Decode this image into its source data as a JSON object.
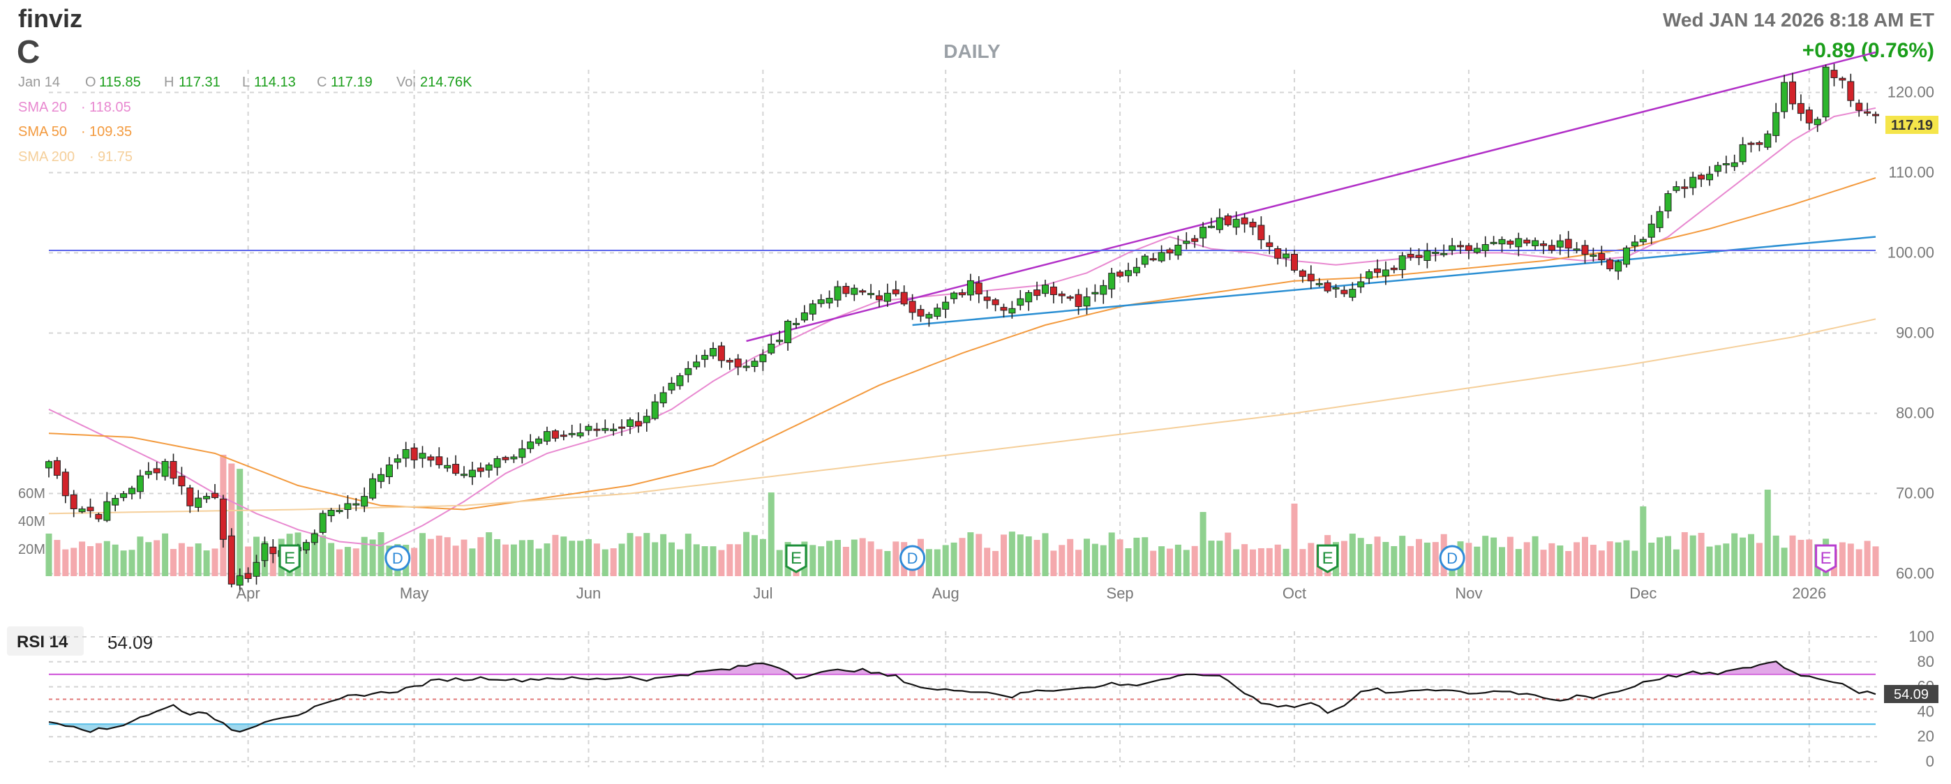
{
  "header": {
    "logo": "finviz",
    "ticker": "C",
    "timeframe": "DAILY",
    "datetime": "Wed JAN 14 2026 8:18 AM ET",
    "change": "+0.89 (0.76%)"
  },
  "quote": {
    "date": "Jan 14",
    "open_label": "O",
    "open": "115.85",
    "high_label": "H",
    "high": "117.31",
    "low_label": "L",
    "low": "114.13",
    "close_label": "C",
    "close": "117.19",
    "vol_label": "Vol",
    "vol": "214.76K"
  },
  "sma": [
    {
      "label": "SMA 20",
      "value": "118.05",
      "color": "#e888d0"
    },
    {
      "label": "SMA 50",
      "value": "109.35",
      "color": "#f39a3e"
    },
    {
      "label": "SMA 200",
      "value": "91.75",
      "color": "#f5cf9a"
    }
  ],
  "price_badge": "117.19",
  "rsi": {
    "label": "RSI 14",
    "value": "54.09",
    "badge": "54.09"
  },
  "colors": {
    "up": "#2cb52c",
    "down": "#d2232a",
    "up_vol": "#8fd18f",
    "down_vol": "#f4a9ad",
    "resistance": "#b12fc7",
    "support": "#2b8fd3",
    "hline": "#5a63ea",
    "rsi_over": "#cd4fd8",
    "rsi_under": "#39b4e6",
    "rsi_mid": "#e07a7a"
  },
  "chart_data": [
    {
      "type": "candlestick",
      "title": "C",
      "period": "DAILY",
      "y_ticks": [
        "60.00",
        "70.00",
        "80.00",
        "90.00",
        "100.00",
        "110.00",
        "120.00"
      ],
      "ylim": [
        55,
        127
      ],
      "x_labels": [
        "Apr",
        "May",
        "Jun",
        "Jul",
        "Aug",
        "Sep",
        "Oct",
        "Nov",
        "Dec",
        "2026"
      ],
      "x_label_positions": [
        24,
        44,
        65,
        86,
        108,
        129,
        150,
        171,
        192,
        212
      ],
      "n_bars": 221,
      "close_anchors": [
        [
          0,
          74
        ],
        [
          3,
          68.5
        ],
        [
          6,
          67.5
        ],
        [
          10,
          71
        ],
        [
          14,
          74
        ],
        [
          17,
          69
        ],
        [
          20,
          70
        ],
        [
          21,
          65
        ],
        [
          22,
          58
        ],
        [
          24,
          60
        ],
        [
          26,
          63
        ],
        [
          30,
          63
        ],
        [
          34,
          68
        ],
        [
          37,
          69
        ],
        [
          42,
          75
        ],
        [
          47,
          74
        ],
        [
          50,
          72
        ],
        [
          53,
          74
        ],
        [
          60,
          77
        ],
        [
          66,
          78
        ],
        [
          71,
          79
        ],
        [
          74,
          82
        ],
        [
          80,
          88
        ],
        [
          83,
          86
        ],
        [
          86,
          87
        ],
        [
          90,
          92
        ],
        [
          94,
          95
        ],
        [
          99,
          95
        ],
        [
          103,
          94
        ],
        [
          106,
          92
        ],
        [
          111,
          96
        ],
        [
          116,
          93
        ],
        [
          120,
          96
        ],
        [
          124,
          94
        ],
        [
          128,
          97
        ],
        [
          131,
          99
        ],
        [
          136,
          101
        ],
        [
          141,
          104
        ],
        [
          145,
          103
        ],
        [
          148,
          100
        ],
        [
          152,
          97
        ],
        [
          156,
          95
        ],
        [
          159,
          97
        ],
        [
          163,
          99
        ],
        [
          168,
          100
        ],
        [
          175,
          101
        ],
        [
          181,
          101
        ],
        [
          185,
          100
        ],
        [
          188,
          98
        ],
        [
          191,
          101
        ],
        [
          196,
          108
        ],
        [
          203,
          112
        ],
        [
          207,
          115
        ],
        [
          209,
          121
        ],
        [
          211,
          117
        ],
        [
          213,
          116
        ],
        [
          214,
          123
        ],
        [
          216,
          121
        ],
        [
          218,
          118
        ],
        [
          220,
          117.19
        ]
      ],
      "earnings_markers": [
        {
          "x": 29,
          "label": "E"
        },
        {
          "x": 90,
          "label": "E"
        },
        {
          "x": 154,
          "label": "E"
        },
        {
          "x": 214,
          "label": "E"
        }
      ],
      "dividend_markers": [
        {
          "x": 42,
          "label": "D"
        },
        {
          "x": 104,
          "label": "D"
        },
        {
          "x": 169,
          "label": "D"
        }
      ],
      "volume_ticks": [
        "20M",
        "40M",
        "60M"
      ],
      "trendlines": [
        {
          "name": "resistance",
          "from": [
            84,
            89
          ],
          "to": [
            220,
            125
          ]
        },
        {
          "name": "support",
          "from": [
            104,
            91
          ],
          "to": [
            220,
            102
          ]
        },
        {
          "name": "horizontal",
          "value": 100.3
        }
      ],
      "series": [
        {
          "name": "SMA 20",
          "last": 118.05,
          "anchors": [
            [
              0,
              80.5
            ],
            [
              5,
              78
            ],
            [
              10,
              75.5
            ],
            [
              15,
              73
            ],
            [
              20,
              70
            ],
            [
              25,
              67.5
            ],
            [
              30,
              65.5
            ],
            [
              35,
              64
            ],
            [
              40,
              63.5
            ],
            [
              45,
              66
            ],
            [
              50,
              69
            ],
            [
              55,
              72.5
            ],
            [
              60,
              75
            ],
            [
              65,
              76.5
            ],
            [
              70,
              78
            ],
            [
              75,
              80.5
            ],
            [
              80,
              84
            ],
            [
              85,
              87
            ],
            [
              90,
              89.5
            ],
            [
              95,
              92
            ],
            [
              100,
              94
            ],
            [
              105,
              94.5
            ],
            [
              110,
              95
            ],
            [
              115,
              95.5
            ],
            [
              120,
              96
            ],
            [
              125,
              97.5
            ],
            [
              130,
              100
            ],
            [
              135,
              102
            ],
            [
              140,
              100.5
            ],
            [
              145,
              100
            ],
            [
              150,
              99
            ],
            [
              155,
              98.5
            ],
            [
              160,
              99
            ],
            [
              165,
              99.5
            ],
            [
              170,
              100
            ],
            [
              175,
              100
            ],
            [
              180,
              99.5
            ],
            [
              185,
              99
            ],
            [
              190,
              99.5
            ],
            [
              195,
              102
            ],
            [
              200,
              106
            ],
            [
              205,
              110
            ],
            [
              210,
              114
            ],
            [
              215,
              117
            ],
            [
              220,
              118.05
            ]
          ]
        },
        {
          "name": "SMA 50",
          "last": 109.35,
          "anchors": [
            [
              0,
              77.5
            ],
            [
              10,
              77
            ],
            [
              20,
              75
            ],
            [
              30,
              71
            ],
            [
              40,
              68.5
            ],
            [
              50,
              68
            ],
            [
              60,
              69.5
            ],
            [
              70,
              71
            ],
            [
              80,
              73.5
            ],
            [
              90,
              78.5
            ],
            [
              100,
              83.5
            ],
            [
              110,
              87.5
            ],
            [
              120,
              91
            ],
            [
              130,
              93.5
            ],
            [
              140,
              95
            ],
            [
              150,
              96.5
            ],
            [
              160,
              97
            ],
            [
              170,
              98
            ],
            [
              180,
              99
            ],
            [
              190,
              100.5
            ],
            [
              200,
              103
            ],
            [
              210,
              106
            ],
            [
              220,
              109.35
            ]
          ]
        },
        {
          "name": "SMA 200",
          "last": 91.75,
          "anchors": [
            [
              0,
              67.5
            ],
            [
              30,
              68
            ],
            [
              50,
              68.5
            ],
            [
              70,
              70
            ],
            [
              90,
              72.5
            ],
            [
              110,
              75
            ],
            [
              130,
              77.5
            ],
            [
              150,
              80
            ],
            [
              170,
              83
            ],
            [
              190,
              86
            ],
            [
              210,
              89.5
            ],
            [
              220,
              91.75
            ]
          ]
        }
      ]
    },
    {
      "type": "line",
      "title": "RSI 14",
      "last": 54.09,
      "y_ticks": [
        "0",
        "20",
        "40",
        "60",
        "80",
        "100"
      ],
      "ylim": [
        0,
        100
      ],
      "overbought": 70,
      "oversold": 30,
      "anchors": [
        [
          0,
          32
        ],
        [
          3,
          29
        ],
        [
          5,
          25
        ],
        [
          7,
          26
        ],
        [
          9,
          30
        ],
        [
          11,
          36
        ],
        [
          13,
          40
        ],
        [
          15,
          45
        ],
        [
          17,
          38
        ],
        [
          19,
          40
        ],
        [
          21,
          30
        ],
        [
          22,
          24
        ],
        [
          24,
          26
        ],
        [
          26,
          33
        ],
        [
          28,
          36
        ],
        [
          30,
          38
        ],
        [
          32,
          43
        ],
        [
          34,
          47
        ],
        [
          36,
          52
        ],
        [
          38,
          54
        ],
        [
          40,
          55
        ],
        [
          42,
          57
        ],
        [
          44,
          60
        ],
        [
          46,
          64
        ],
        [
          48,
          66
        ],
        [
          50,
          66
        ],
        [
          52,
          67
        ],
        [
          54,
          67
        ],
        [
          56,
          65
        ],
        [
          58,
          66
        ],
        [
          60,
          67
        ],
        [
          62,
          67
        ],
        [
          64,
          66
        ],
        [
          66,
          66
        ],
        [
          68,
          67
        ],
        [
          70,
          68
        ],
        [
          72,
          66
        ],
        [
          74,
          67
        ],
        [
          76,
          70
        ],
        [
          78,
          71
        ],
        [
          80,
          73
        ],
        [
          82,
          74
        ],
        [
          84,
          77
        ],
        [
          86,
          79
        ],
        [
          88,
          76
        ],
        [
          90,
          68
        ],
        [
          92,
          70
        ],
        [
          94,
          72
        ],
        [
          96,
          74
        ],
        [
          98,
          73
        ],
        [
          100,
          70
        ],
        [
          102,
          68
        ],
        [
          104,
          62
        ],
        [
          106,
          58
        ],
        [
          108,
          57
        ],
        [
          110,
          58
        ],
        [
          112,
          56
        ],
        [
          114,
          55
        ],
        [
          116,
          52
        ],
        [
          118,
          56
        ],
        [
          120,
          57
        ],
        [
          122,
          58
        ],
        [
          124,
          60
        ],
        [
          126,
          59
        ],
        [
          128,
          63
        ],
        [
          130,
          61
        ],
        [
          132,
          63
        ],
        [
          134,
          66
        ],
        [
          136,
          68
        ],
        [
          138,
          69
        ],
        [
          140,
          70
        ],
        [
          142,
          65
        ],
        [
          144,
          55
        ],
        [
          146,
          48
        ],
        [
          148,
          45
        ],
        [
          150,
          44
        ],
        [
          152,
          47
        ],
        [
          154,
          40
        ],
        [
          156,
          46
        ],
        [
          158,
          55
        ],
        [
          160,
          58
        ],
        [
          162,
          54
        ],
        [
          164,
          57
        ],
        [
          166,
          58
        ],
        [
          168,
          58
        ],
        [
          170,
          56
        ],
        [
          172,
          55
        ],
        [
          174,
          57
        ],
        [
          176,
          56
        ],
        [
          178,
          53
        ],
        [
          180,
          51
        ],
        [
          182,
          48
        ],
        [
          184,
          53
        ],
        [
          186,
          52
        ],
        [
          188,
          55
        ],
        [
          190,
          58
        ],
        [
          192,
          64
        ],
        [
          194,
          67
        ],
        [
          196,
          69
        ],
        [
          198,
          71
        ],
        [
          200,
          70
        ],
        [
          202,
          72
        ],
        [
          204,
          74
        ],
        [
          206,
          78
        ],
        [
          208,
          80
        ],
        [
          210,
          72
        ],
        [
          212,
          68
        ],
        [
          214,
          66
        ],
        [
          216,
          63
        ],
        [
          218,
          56
        ],
        [
          220,
          54.09
        ]
      ]
    }
  ]
}
